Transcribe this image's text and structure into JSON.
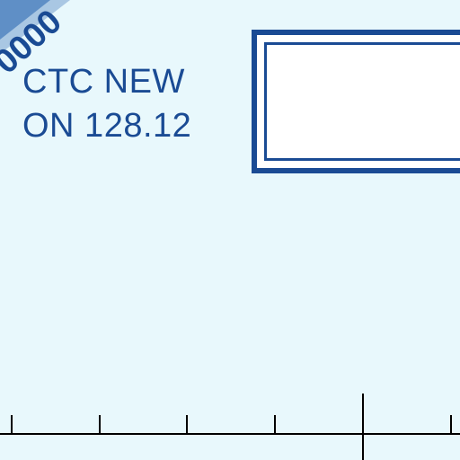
{
  "chart_panel": {
    "corner_label": "0000",
    "notice": {
      "line1": "CTC NEW",
      "line2": "ON 128.12"
    }
  },
  "colors": {
    "background": "#e8f8fc",
    "chart_blue": "#1a4b94",
    "band_light": "#a9c7e3",
    "band_mid": "#5f8fc6"
  }
}
